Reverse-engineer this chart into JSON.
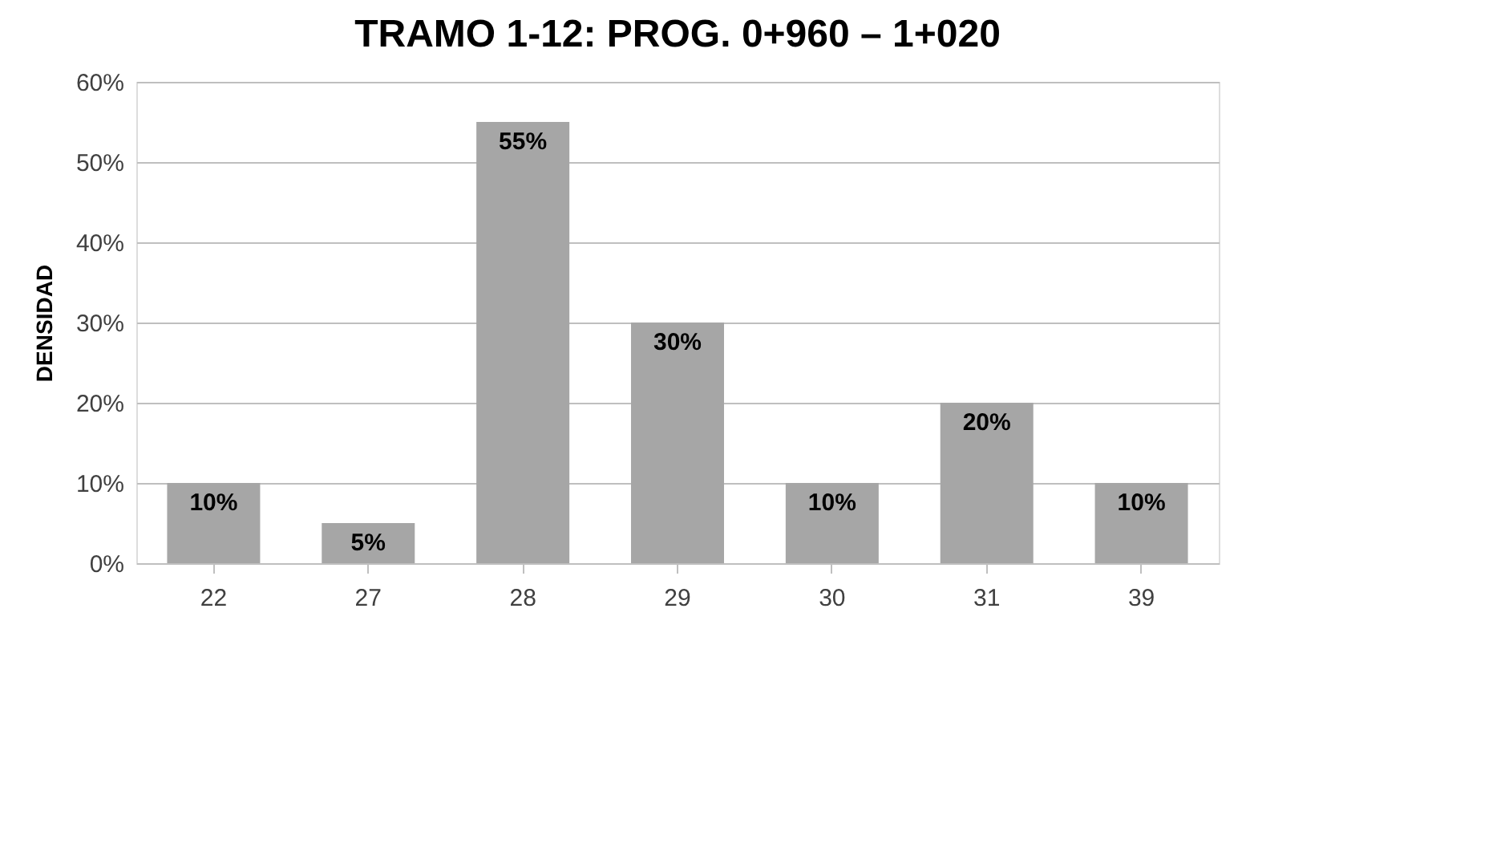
{
  "chart_data": {
    "type": "bar",
    "title": "TRAMO 1-12: PROG. 0+960 – 1+020",
    "ylabel": "DENSIDAD",
    "categories": [
      "22",
      "27",
      "28",
      "29",
      "30",
      "31",
      "39"
    ],
    "values": [
      10,
      5,
      55,
      30,
      10,
      20,
      10
    ],
    "value_labels": [
      "10%",
      "5%",
      "55%",
      "30%",
      "10%",
      "20%",
      "10%"
    ],
    "color": "#a6a6a6",
    "ylim": [
      0,
      60
    ],
    "yticks": [
      {
        "value": 0,
        "label": "0%"
      },
      {
        "value": 10,
        "label": "10%"
      },
      {
        "value": 20,
        "label": "20%"
      },
      {
        "value": 30,
        "label": "30%"
      },
      {
        "value": 40,
        "label": "40%"
      },
      {
        "value": 50,
        "label": "50%"
      },
      {
        "value": 60,
        "label": "60%"
      }
    ],
    "grid": "y"
  }
}
